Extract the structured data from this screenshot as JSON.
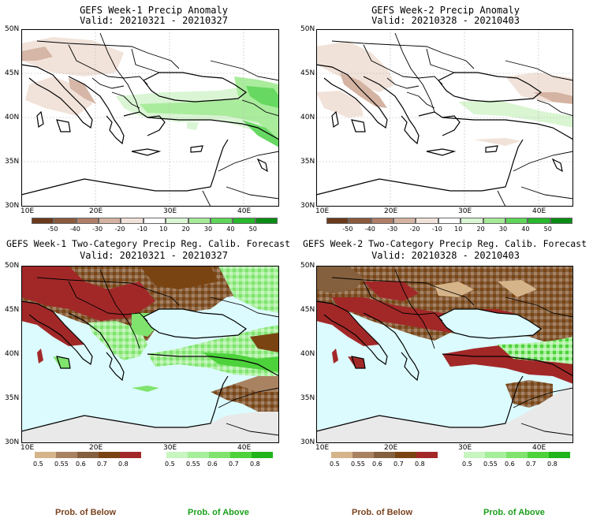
{
  "panels": [
    {
      "line1": "GEFS Week-1 Precip Anomaly",
      "line2": "Valid: 20210321 - 20210327"
    },
    {
      "line1": "GEFS Week-2 Precip Anomaly",
      "line2": "Valid: 20210328 - 20210403"
    },
    {
      "line1": "GEFS Week-1 Two-Category Precip Reg. Calib. Forecast",
      "line2": "Valid: 20210321 - 20210327"
    },
    {
      "line1": "GEFS Week-2 Two-Category Precip Reg. Calib. Forecast",
      "line2": "Valid: 20210328 - 20210403"
    }
  ],
  "lat_labels": [
    "50N",
    "45N",
    "40N",
    "35N",
    "30N"
  ],
  "lon_labels": [
    "10E",
    "20E",
    "30E",
    "40E"
  ],
  "anomaly_ticks": [
    "-50",
    "-40",
    "-30",
    "-20",
    "-10",
    "10",
    "20",
    "30",
    "40",
    "50"
  ],
  "anomaly_colors": [
    "#6b3a1c",
    "#8b5a3c",
    "#b07f68",
    "#d4b3a2",
    "#f1e2d9",
    "#ffffff",
    "#d9f5d2",
    "#a5eb97",
    "#5fd65a",
    "#27b82b",
    "#0a8c14"
  ],
  "prob_ticks": [
    "0.5",
    "0.55",
    "0.6",
    "0.7",
    "0.8"
  ],
  "below_colors": [
    "#d5b48a",
    "#a98262",
    "#85603e",
    "#7a4412",
    "#a22828"
  ],
  "above_colors": [
    "#c8f5c0",
    "#a6ef9a",
    "#7fe36e",
    "#4dd23c",
    "#1fb51a"
  ],
  "footer": {
    "below": "Prob. of Below",
    "above": "Prob. of Above"
  },
  "colors": {
    "ocean": "#dcfbff",
    "land_white": "#ffffff",
    "outside": "#e9e9e9",
    "below_text": "#7a4420",
    "above_text": "#1a9f1a"
  }
}
